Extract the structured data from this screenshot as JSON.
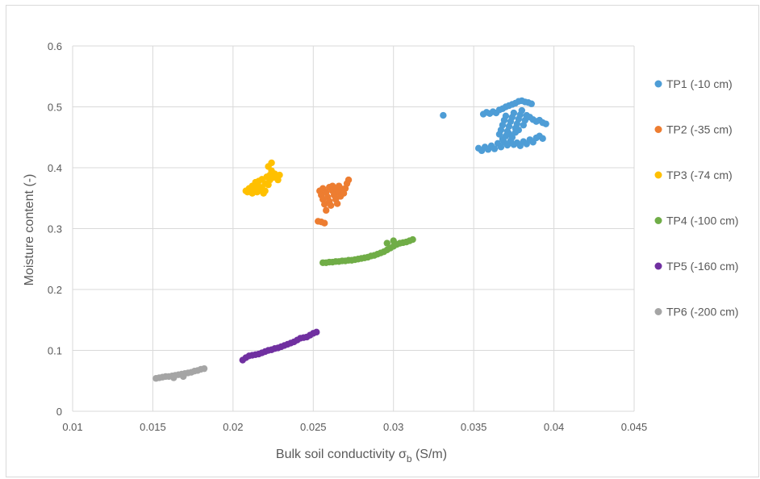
{
  "chart_data": {
    "type": "scatter",
    "xlabel": "Bulk soil conductivity σ",
    "xlabel_sub": "b",
    "xlabel_unit": " (S/m)",
    "ylabel": "Moisture content (-)",
    "xlim": [
      0.01,
      0.045
    ],
    "ylim": [
      0,
      0.6
    ],
    "x_ticks": [
      "0.01",
      "0.015",
      "0.02",
      "0.025",
      "0.03",
      "0.035",
      "0.04",
      "0.045"
    ],
    "y_ticks": [
      "0",
      "0.1",
      "0.2",
      "0.3",
      "0.4",
      "0.5",
      "0.6"
    ],
    "grid": true,
    "legend_position": "right",
    "series": [
      {
        "name": "TP1 (-10 cm)",
        "color": "#4e9dd6",
        "points": [
          [
            0.0331,
            0.486
          ],
          [
            0.0353,
            0.432
          ],
          [
            0.0355,
            0.428
          ],
          [
            0.0357,
            0.434
          ],
          [
            0.0359,
            0.43
          ],
          [
            0.0361,
            0.436
          ],
          [
            0.0363,
            0.431
          ],
          [
            0.0365,
            0.44
          ],
          [
            0.0367,
            0.434
          ],
          [
            0.0369,
            0.442
          ],
          [
            0.0371,
            0.437
          ],
          [
            0.0373,
            0.444
          ],
          [
            0.0375,
            0.438
          ],
          [
            0.0377,
            0.441
          ],
          [
            0.0379,
            0.436
          ],
          [
            0.0381,
            0.443
          ],
          [
            0.0383,
            0.439
          ],
          [
            0.0385,
            0.446
          ],
          [
            0.0387,
            0.442
          ],
          [
            0.0389,
            0.449
          ],
          [
            0.0391,
            0.452
          ],
          [
            0.0393,
            0.448
          ],
          [
            0.0356,
            0.488
          ],
          [
            0.0358,
            0.491
          ],
          [
            0.036,
            0.489
          ],
          [
            0.0362,
            0.492
          ],
          [
            0.0364,
            0.49
          ],
          [
            0.0366,
            0.495
          ],
          [
            0.0368,
            0.497
          ],
          [
            0.037,
            0.5
          ],
          [
            0.0372,
            0.502
          ],
          [
            0.0374,
            0.504
          ],
          [
            0.0376,
            0.506
          ],
          [
            0.0378,
            0.509
          ],
          [
            0.038,
            0.51
          ],
          [
            0.0382,
            0.508
          ],
          [
            0.0384,
            0.507
          ],
          [
            0.0386,
            0.505
          ],
          [
            0.0385,
            0.483
          ],
          [
            0.0387,
            0.479
          ],
          [
            0.0389,
            0.476
          ],
          [
            0.0391,
            0.478
          ],
          [
            0.0393,
            0.474
          ],
          [
            0.0395,
            0.472
          ],
          [
            0.0366,
            0.455
          ],
          [
            0.0367,
            0.462
          ],
          [
            0.0368,
            0.47
          ],
          [
            0.0369,
            0.478
          ],
          [
            0.037,
            0.485
          ],
          [
            0.0371,
            0.46
          ],
          [
            0.0372,
            0.468
          ],
          [
            0.0373,
            0.476
          ],
          [
            0.0374,
            0.483
          ],
          [
            0.0375,
            0.49
          ],
          [
            0.0376,
            0.465
          ],
          [
            0.0377,
            0.472
          ],
          [
            0.0378,
            0.48
          ],
          [
            0.0379,
            0.487
          ],
          [
            0.038,
            0.494
          ],
          [
            0.0381,
            0.47
          ],
          [
            0.0382,
            0.478
          ],
          [
            0.0383,
            0.486
          ],
          [
            0.0368,
            0.447
          ],
          [
            0.037,
            0.452
          ],
          [
            0.0372,
            0.456
          ],
          [
            0.0374,
            0.45
          ],
          [
            0.0376,
            0.458
          ],
          [
            0.0378,
            0.462
          ]
        ]
      },
      {
        "name": "TP2 (-35 cm)",
        "color": "#ed7d31",
        "points": [
          [
            0.0253,
            0.312
          ],
          [
            0.0255,
            0.311
          ],
          [
            0.0257,
            0.309
          ],
          [
            0.0254,
            0.362
          ],
          [
            0.0255,
            0.355
          ],
          [
            0.0256,
            0.348
          ],
          [
            0.0257,
            0.34
          ],
          [
            0.0258,
            0.33
          ],
          [
            0.0256,
            0.366
          ],
          [
            0.0258,
            0.36
          ],
          [
            0.0259,
            0.352
          ],
          [
            0.026,
            0.345
          ],
          [
            0.0261,
            0.338
          ],
          [
            0.026,
            0.368
          ],
          [
            0.0262,
            0.362
          ],
          [
            0.0263,
            0.355
          ],
          [
            0.0264,
            0.348
          ],
          [
            0.0265,
            0.341
          ],
          [
            0.0262,
            0.37
          ],
          [
            0.0264,
            0.366
          ],
          [
            0.0266,
            0.36
          ],
          [
            0.0267,
            0.353
          ],
          [
            0.0266,
            0.37
          ],
          [
            0.0268,
            0.365
          ],
          [
            0.0269,
            0.358
          ],
          [
            0.027,
            0.366
          ],
          [
            0.0271,
            0.374
          ],
          [
            0.0272,
            0.38
          ]
        ]
      },
      {
        "name": "TP3 (-74 cm)",
        "color": "#ffc000",
        "points": [
          [
            0.0208,
            0.362
          ],
          [
            0.0209,
            0.36
          ],
          [
            0.021,
            0.366
          ],
          [
            0.0211,
            0.363
          ],
          [
            0.0212,
            0.37
          ],
          [
            0.0213,
            0.365
          ],
          [
            0.0214,
            0.372
          ],
          [
            0.0215,
            0.36
          ],
          [
            0.0216,
            0.378
          ],
          [
            0.0217,
            0.368
          ],
          [
            0.0218,
            0.381
          ],
          [
            0.0219,
            0.358
          ],
          [
            0.022,
            0.374
          ],
          [
            0.0221,
            0.385
          ],
          [
            0.0222,
            0.372
          ],
          [
            0.0223,
            0.388
          ],
          [
            0.0224,
            0.395
          ],
          [
            0.0223,
            0.38
          ],
          [
            0.0225,
            0.384
          ],
          [
            0.0226,
            0.39
          ],
          [
            0.0227,
            0.386
          ],
          [
            0.0228,
            0.38
          ],
          [
            0.0229,
            0.388
          ],
          [
            0.0224,
            0.408
          ],
          [
            0.0222,
            0.402
          ],
          [
            0.0216,
            0.362
          ],
          [
            0.0218,
            0.367
          ],
          [
            0.022,
            0.362
          ],
          [
            0.0214,
            0.376
          ],
          [
            0.0212,
            0.358
          ]
        ]
      },
      {
        "name": "TP4 (-100 cm)",
        "color": "#70ad47",
        "points": [
          [
            0.0256,
            0.244
          ],
          [
            0.0258,
            0.244
          ],
          [
            0.026,
            0.245
          ],
          [
            0.0262,
            0.245
          ],
          [
            0.0264,
            0.246
          ],
          [
            0.0266,
            0.246
          ],
          [
            0.0268,
            0.247
          ],
          [
            0.027,
            0.247
          ],
          [
            0.0272,
            0.248
          ],
          [
            0.0274,
            0.248
          ],
          [
            0.0276,
            0.249
          ],
          [
            0.0278,
            0.25
          ],
          [
            0.028,
            0.251
          ],
          [
            0.0282,
            0.252
          ],
          [
            0.0284,
            0.253
          ],
          [
            0.0286,
            0.255
          ],
          [
            0.0288,
            0.256
          ],
          [
            0.029,
            0.258
          ],
          [
            0.0292,
            0.26
          ],
          [
            0.0294,
            0.262
          ],
          [
            0.0296,
            0.265
          ],
          [
            0.0298,
            0.268
          ],
          [
            0.03,
            0.271
          ],
          [
            0.0302,
            0.274
          ],
          [
            0.0304,
            0.276
          ],
          [
            0.0306,
            0.277
          ],
          [
            0.0308,
            0.278
          ],
          [
            0.031,
            0.28
          ],
          [
            0.0312,
            0.282
          ],
          [
            0.0296,
            0.276
          ],
          [
            0.03,
            0.28
          ]
        ]
      },
      {
        "name": "TP5 (-160 cm)",
        "color": "#7030a0",
        "points": [
          [
            0.0206,
            0.084
          ],
          [
            0.0208,
            0.088
          ],
          [
            0.021,
            0.091
          ],
          [
            0.0212,
            0.092
          ],
          [
            0.0214,
            0.093
          ],
          [
            0.0216,
            0.094
          ],
          [
            0.0218,
            0.096
          ],
          [
            0.022,
            0.098
          ],
          [
            0.0222,
            0.1
          ],
          [
            0.0224,
            0.101
          ],
          [
            0.0226,
            0.103
          ],
          [
            0.0228,
            0.104
          ],
          [
            0.023,
            0.106
          ],
          [
            0.0232,
            0.108
          ],
          [
            0.0234,
            0.11
          ],
          [
            0.0236,
            0.112
          ],
          [
            0.0238,
            0.114
          ],
          [
            0.024,
            0.117
          ],
          [
            0.0242,
            0.12
          ],
          [
            0.0244,
            0.121
          ],
          [
            0.0246,
            0.122
          ],
          [
            0.0248,
            0.125
          ],
          [
            0.025,
            0.128
          ],
          [
            0.0252,
            0.13
          ]
        ]
      },
      {
        "name": "TP6 (-200 cm)",
        "color": "#a5a5a5",
        "points": [
          [
            0.0152,
            0.054
          ],
          [
            0.0154,
            0.055
          ],
          [
            0.0156,
            0.056
          ],
          [
            0.0158,
            0.057
          ],
          [
            0.016,
            0.057
          ],
          [
            0.0162,
            0.058
          ],
          [
            0.0164,
            0.059
          ],
          [
            0.0166,
            0.06
          ],
          [
            0.0168,
            0.061
          ],
          [
            0.017,
            0.062
          ],
          [
            0.0172,
            0.063
          ],
          [
            0.0174,
            0.064
          ],
          [
            0.0176,
            0.066
          ],
          [
            0.0178,
            0.067
          ],
          [
            0.018,
            0.069
          ],
          [
            0.0182,
            0.07
          ],
          [
            0.0169,
            0.057
          ],
          [
            0.0163,
            0.055
          ]
        ]
      }
    ]
  }
}
